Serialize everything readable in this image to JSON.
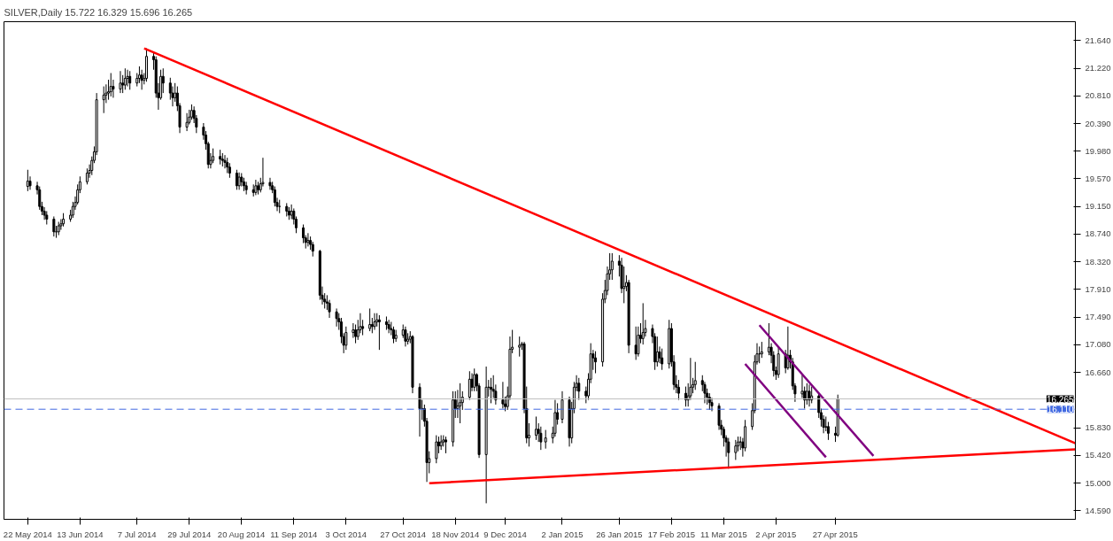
{
  "chart_data": {
    "type": "candlestick",
    "title": "SILVER,Daily  15.722 16.329 15.696 16.265",
    "x": [
      "2014-05-22",
      "2014-05-23",
      "2014-05-26",
      "2014-05-27",
      "2014-05-28",
      "2014-05-29",
      "2014-05-30",
      "2014-06-02",
      "2014-06-03",
      "2014-06-04",
      "2014-06-05",
      "2014-06-06",
      "2014-06-09",
      "2014-06-10",
      "2014-06-11",
      "2014-06-12",
      "2014-06-13",
      "2014-06-16",
      "2014-06-17",
      "2014-06-18",
      "2014-06-19",
      "2014-06-20",
      "2014-06-23",
      "2014-06-24",
      "2014-06-25",
      "2014-06-26",
      "2014-06-27",
      "2014-06-30",
      "2014-07-01",
      "2014-07-02",
      "2014-07-03",
      "2014-07-04",
      "2014-07-07",
      "2014-07-08",
      "2014-07-09",
      "2014-07-10",
      "2014-07-11",
      "2014-07-14",
      "2014-07-15",
      "2014-07-16",
      "2014-07-17",
      "2014-07-18",
      "2014-07-21",
      "2014-07-22",
      "2014-07-23",
      "2014-07-24",
      "2014-07-25",
      "2014-07-28",
      "2014-07-29",
      "2014-07-30",
      "2014-07-31",
      "2014-08-01",
      "2014-08-04",
      "2014-08-05",
      "2014-08-06",
      "2014-08-07",
      "2014-08-08",
      "2014-08-11",
      "2014-08-12",
      "2014-08-13",
      "2014-08-14",
      "2014-08-15",
      "2014-08-18",
      "2014-08-19",
      "2014-08-20",
      "2014-08-21",
      "2014-08-22",
      "2014-08-25",
      "2014-08-26",
      "2014-08-27",
      "2014-08-28",
      "2014-08-29",
      "2014-09-01",
      "2014-09-02",
      "2014-09-03",
      "2014-09-04",
      "2014-09-05",
      "2014-09-08",
      "2014-09-09",
      "2014-09-10",
      "2014-09-11",
      "2014-09-12",
      "2014-09-15",
      "2014-09-16",
      "2014-09-17",
      "2014-09-18",
      "2014-09-19",
      "2014-09-22",
      "2014-09-23",
      "2014-09-24",
      "2014-09-25",
      "2014-09-26",
      "2014-09-29",
      "2014-09-30",
      "2014-10-01",
      "2014-10-02",
      "2014-10-03",
      "2014-10-06",
      "2014-10-07",
      "2014-10-08",
      "2014-10-09",
      "2014-10-10",
      "2014-10-13",
      "2014-10-14",
      "2014-10-15",
      "2014-10-16",
      "2014-10-17",
      "2014-10-20",
      "2014-10-21",
      "2014-10-22",
      "2014-10-23",
      "2014-10-24",
      "2014-10-27",
      "2014-10-28",
      "2014-10-29",
      "2014-10-30",
      "2014-10-31",
      "2014-11-03",
      "2014-11-04",
      "2014-11-05",
      "2014-11-06",
      "2014-11-07",
      "2014-11-10",
      "2014-11-11",
      "2014-11-12",
      "2014-11-13",
      "2014-11-14",
      "2014-11-17",
      "2014-11-18",
      "2014-11-19",
      "2014-11-20",
      "2014-11-21",
      "2014-11-24",
      "2014-11-25",
      "2014-11-26",
      "2014-11-27",
      "2014-11-28",
      "2014-12-01",
      "2014-12-02",
      "2014-12-03",
      "2014-12-04",
      "2014-12-05",
      "2014-12-08",
      "2014-12-09",
      "2014-12-10",
      "2014-12-11",
      "2014-12-12",
      "2014-12-15",
      "2014-12-16",
      "2014-12-17",
      "2014-12-18",
      "2014-12-19",
      "2014-12-22",
      "2014-12-23",
      "2014-12-24",
      "2014-12-26",
      "2014-12-29",
      "2014-12-30",
      "2014-12-31",
      "2015-01-02",
      "2015-01-05",
      "2015-01-06",
      "2015-01-07",
      "2015-01-08",
      "2015-01-09",
      "2015-01-12",
      "2015-01-13",
      "2015-01-14",
      "2015-01-15",
      "2015-01-16",
      "2015-01-19",
      "2015-01-20",
      "2015-01-21",
      "2015-01-22",
      "2015-01-23",
      "2015-01-26",
      "2015-01-27",
      "2015-01-28",
      "2015-01-29",
      "2015-01-30",
      "2015-02-02",
      "2015-02-03",
      "2015-02-04",
      "2015-02-05",
      "2015-02-06",
      "2015-02-09",
      "2015-02-10",
      "2015-02-11",
      "2015-02-12",
      "2015-02-13",
      "2015-02-16",
      "2015-02-17",
      "2015-02-18",
      "2015-02-19",
      "2015-02-20",
      "2015-02-23",
      "2015-02-24",
      "2015-02-25",
      "2015-02-26",
      "2015-02-27",
      "2015-03-02",
      "2015-03-03",
      "2015-03-04",
      "2015-03-05",
      "2015-03-06",
      "2015-03-09",
      "2015-03-10",
      "2015-03-11",
      "2015-03-12",
      "2015-03-13",
      "2015-03-16",
      "2015-03-17",
      "2015-03-18",
      "2015-03-19",
      "2015-03-20",
      "2015-03-23",
      "2015-03-24",
      "2015-03-25",
      "2015-03-26",
      "2015-03-27",
      "2015-03-30",
      "2015-03-31",
      "2015-04-01",
      "2015-04-02",
      "2015-04-03",
      "2015-04-06",
      "2015-04-07",
      "2015-04-08",
      "2015-04-09",
      "2015-04-10",
      "2015-04-13",
      "2015-04-14",
      "2015-04-15",
      "2015-04-16",
      "2015-04-17",
      "2015-04-20",
      "2015-04-21",
      "2015-04-22",
      "2015-04-23",
      "2015-04-24",
      "2015-04-27",
      "2015-04-28"
    ],
    "ohlc": [
      [
        19.45,
        19.7,
        19.38,
        19.53
      ],
      [
        19.53,
        19.6,
        19.4,
        19.46
      ],
      [
        19.46,
        19.52,
        19.33,
        19.4
      ],
      [
        19.4,
        19.45,
        19.1,
        19.15
      ],
      [
        19.15,
        19.22,
        19.02,
        19.08
      ],
      [
        19.08,
        19.14,
        18.95,
        19.02
      ],
      [
        19.02,
        19.08,
        18.88,
        18.96
      ],
      [
        18.96,
        19.0,
        18.7,
        18.77
      ],
      [
        18.77,
        18.86,
        18.68,
        18.77
      ],
      [
        18.77,
        18.92,
        18.72,
        18.86
      ],
      [
        18.86,
        18.96,
        18.8,
        18.89
      ],
      [
        18.89,
        19.05,
        18.85,
        18.96
      ],
      [
        18.96,
        19.1,
        18.92,
        19.02
      ],
      [
        19.02,
        19.22,
        18.98,
        19.15
      ],
      [
        19.15,
        19.3,
        19.1,
        19.21
      ],
      [
        19.21,
        19.48,
        19.18,
        19.4
      ],
      [
        19.4,
        19.6,
        19.35,
        19.52
      ],
      [
        19.52,
        19.72,
        19.48,
        19.65
      ],
      [
        19.65,
        19.78,
        19.58,
        19.69
      ],
      [
        19.69,
        19.9,
        19.62,
        19.84
      ],
      [
        19.84,
        20.05,
        19.8,
        19.97
      ],
      [
        19.97,
        20.85,
        19.92,
        20.75
      ],
      [
        20.75,
        20.95,
        20.55,
        20.82
      ],
      [
        20.82,
        20.98,
        20.7,
        20.85
      ],
      [
        20.85,
        21.05,
        20.75,
        20.87
      ],
      [
        20.87,
        21.15,
        20.8,
        20.95
      ],
      [
        20.95,
        21.05,
        20.78,
        20.91
      ],
      [
        20.91,
        21.18,
        20.85,
        21.0
      ],
      [
        21.0,
        21.12,
        20.85,
        20.97
      ],
      [
        20.97,
        21.22,
        20.9,
        21.07
      ],
      [
        21.07,
        21.2,
        20.95,
        21.1
      ],
      [
        21.1,
        21.18,
        20.9,
        21.0
      ],
      [
        21.0,
        21.15,
        20.95,
        21.07
      ],
      [
        21.07,
        21.25,
        21.0,
        21.12
      ],
      [
        21.12,
        21.2,
        20.9,
        21.04
      ],
      [
        21.04,
        21.15,
        20.98,
        21.07
      ],
      [
        21.07,
        21.52,
        21.02,
        21.4
      ],
      [
        21.4,
        21.45,
        21.2,
        21.35
      ],
      [
        21.35,
        21.4,
        20.78,
        20.85
      ],
      [
        20.85,
        21.0,
        20.6,
        20.78
      ],
      [
        20.78,
        21.2,
        20.75,
        21.1
      ],
      [
        21.1,
        21.22,
        20.85,
        21.0
      ],
      [
        21.0,
        21.08,
        20.75,
        20.85
      ],
      [
        20.85,
        20.95,
        20.65,
        20.78
      ],
      [
        20.78,
        21.0,
        20.72,
        20.85
      ],
      [
        20.85,
        20.95,
        20.58,
        20.66
      ],
      [
        20.66,
        20.7,
        20.25,
        20.34
      ],
      [
        20.34,
        20.55,
        20.28,
        20.41
      ],
      [
        20.41,
        20.6,
        20.38,
        20.49
      ],
      [
        20.49,
        20.68,
        20.45,
        20.59
      ],
      [
        20.59,
        20.65,
        20.4,
        20.47
      ],
      [
        20.47,
        20.52,
        20.25,
        20.34
      ],
      [
        20.34,
        20.4,
        20.15,
        20.22
      ],
      [
        20.22,
        20.28,
        20.0,
        20.09
      ],
      [
        20.09,
        20.12,
        19.72,
        19.78
      ],
      [
        19.78,
        19.95,
        19.72,
        19.84
      ],
      [
        19.84,
        20.02,
        19.8,
        19.9
      ],
      [
        19.9,
        20.0,
        19.78,
        19.86
      ],
      [
        19.86,
        19.95,
        19.75,
        19.84
      ],
      [
        19.84,
        19.92,
        19.72,
        19.81
      ],
      [
        19.81,
        19.88,
        19.65,
        19.74
      ],
      [
        19.74,
        19.8,
        19.58,
        19.65
      ],
      [
        19.65,
        19.7,
        19.4,
        19.46
      ],
      [
        19.46,
        19.66,
        19.4,
        19.59
      ],
      [
        19.59,
        19.65,
        19.45,
        19.52
      ],
      [
        19.52,
        19.58,
        19.38,
        19.46
      ],
      [
        19.46,
        19.52,
        19.33,
        19.4
      ],
      [
        19.4,
        19.48,
        19.3,
        19.36
      ],
      [
        19.36,
        19.55,
        19.32,
        19.46
      ],
      [
        19.46,
        19.52,
        19.33,
        19.4
      ],
      [
        19.4,
        19.58,
        19.36,
        19.49
      ],
      [
        19.49,
        19.88,
        19.45,
        19.51
      ],
      [
        19.51,
        19.58,
        19.4,
        19.46
      ],
      [
        19.46,
        19.52,
        19.35,
        19.4
      ],
      [
        19.4,
        19.45,
        19.15,
        19.21
      ],
      [
        19.21,
        19.28,
        19.08,
        19.15
      ],
      [
        19.15,
        19.25,
        19.05,
        19.15
      ],
      [
        19.15,
        19.2,
        19.0,
        19.08
      ],
      [
        19.08,
        19.14,
        18.95,
        19.02
      ],
      [
        19.02,
        19.18,
        18.96,
        19.08
      ],
      [
        19.08,
        19.12,
        18.88,
        18.96
      ],
      [
        18.96,
        19.0,
        18.75,
        18.83
      ],
      [
        18.83,
        18.88,
        18.6,
        18.68
      ],
      [
        18.68,
        18.72,
        18.52,
        18.61
      ],
      [
        18.61,
        18.75,
        18.55,
        18.64
      ],
      [
        18.64,
        18.7,
        18.5,
        18.58
      ],
      [
        18.58,
        18.62,
        18.4,
        18.48
      ],
      [
        18.48,
        18.5,
        17.75,
        17.82
      ],
      [
        17.82,
        17.95,
        17.68,
        17.76
      ],
      [
        17.76,
        17.85,
        17.62,
        17.72
      ],
      [
        17.72,
        17.82,
        17.6,
        17.7
      ],
      [
        17.7,
        17.75,
        17.48,
        17.57
      ],
      [
        17.57,
        17.62,
        17.35,
        17.47
      ],
      [
        17.47,
        17.55,
        17.3,
        17.42
      ],
      [
        17.42,
        17.48,
        17.1,
        17.2
      ],
      [
        17.2,
        17.25,
        16.95,
        17.07
      ],
      [
        17.07,
        17.35,
        17.0,
        17.26
      ],
      [
        17.26,
        17.4,
        17.18,
        17.3
      ],
      [
        17.3,
        17.38,
        17.1,
        17.2
      ],
      [
        17.2,
        17.45,
        17.15,
        17.3
      ],
      [
        17.3,
        17.55,
        17.25,
        17.35
      ],
      [
        17.35,
        17.45,
        17.22,
        17.32
      ],
      [
        17.32,
        17.62,
        17.28,
        17.38
      ],
      [
        17.38,
        17.48,
        17.25,
        17.35
      ],
      [
        17.35,
        17.55,
        17.3,
        17.42
      ],
      [
        17.42,
        17.55,
        17.35,
        17.45
      ],
      [
        17.45,
        17.52,
        17.0,
        17.42
      ],
      [
        17.42,
        17.5,
        17.3,
        17.38
      ],
      [
        17.38,
        17.45,
        17.25,
        17.32
      ],
      [
        17.32,
        17.42,
        17.22,
        17.3
      ],
      [
        17.3,
        17.35,
        17.1,
        17.17
      ],
      [
        17.17,
        17.3,
        17.12,
        17.22
      ],
      [
        17.22,
        17.38,
        17.18,
        17.3
      ],
      [
        17.3,
        17.35,
        17.05,
        17.13
      ],
      [
        17.13,
        17.25,
        17.08,
        17.16
      ],
      [
        17.16,
        17.28,
        17.1,
        17.2
      ],
      [
        17.2,
        17.22,
        16.35,
        16.44
      ],
      [
        16.44,
        16.5,
        15.7,
        16.12
      ],
      [
        16.12,
        16.25,
        15.95,
        16.12
      ],
      [
        16.12,
        16.18,
        15.85,
        15.93
      ],
      [
        15.93,
        15.98,
        15.02,
        15.31
      ],
      [
        15.31,
        15.48,
        15.15,
        15.37
      ],
      [
        15.37,
        15.72,
        15.3,
        15.62
      ],
      [
        15.62,
        15.7,
        15.45,
        15.56
      ],
      [
        15.56,
        15.72,
        15.5,
        15.62
      ],
      [
        15.62,
        15.72,
        15.55,
        15.65
      ],
      [
        15.65,
        15.7,
        15.45,
        15.62
      ],
      [
        15.62,
        16.38,
        15.55,
        16.25
      ],
      [
        16.25,
        16.38,
        15.98,
        16.12
      ],
      [
        16.12,
        16.4,
        15.98,
        16.16
      ],
      [
        16.16,
        16.5,
        15.9,
        16.21
      ],
      [
        16.21,
        16.38,
        16.1,
        16.29
      ],
      [
        16.29,
        16.68,
        16.25,
        16.56
      ],
      [
        16.56,
        16.65,
        16.38,
        16.44
      ],
      [
        16.44,
        16.72,
        16.38,
        16.63
      ],
      [
        16.63,
        16.65,
        16.38,
        16.46
      ],
      [
        16.46,
        16.5,
        15.38,
        15.43
      ],
      [
        15.43,
        16.75,
        14.7,
        16.44
      ],
      [
        16.44,
        16.55,
        16.3,
        16.44
      ],
      [
        16.44,
        16.58,
        16.2,
        16.41
      ],
      [
        16.41,
        16.62,
        16.28,
        16.38
      ],
      [
        16.38,
        16.48,
        16.18,
        16.25
      ],
      [
        16.25,
        16.52,
        16.12,
        16.19
      ],
      [
        16.19,
        16.3,
        16.08,
        16.15
      ],
      [
        16.15,
        16.45,
        16.1,
        16.31
      ],
      [
        16.31,
        17.2,
        16.25,
        17.01
      ],
      [
        17.01,
        17.3,
        16.95,
        17.04
      ],
      [
        17.04,
        17.2,
        16.9,
        17.07
      ],
      [
        17.07,
        17.12,
        17.0,
        17.09
      ],
      [
        17.09,
        17.12,
        16.05,
        16.12
      ],
      [
        16.12,
        16.45,
        15.6,
        15.68
      ],
      [
        15.68,
        15.9,
        15.55,
        15.72
      ],
      [
        15.72,
        16.0,
        15.65,
        15.81
      ],
      [
        15.81,
        15.9,
        15.62,
        15.75
      ],
      [
        15.75,
        15.85,
        15.5,
        15.62
      ],
      [
        15.62,
        15.8,
        15.52,
        15.68
      ],
      [
        15.68,
        15.85,
        15.6,
        15.75
      ],
      [
        15.75,
        16.25,
        15.7,
        16.06
      ],
      [
        16.06,
        16.2,
        15.88,
        15.96
      ],
      [
        15.96,
        16.38,
        15.9,
        16.25
      ],
      [
        16.25,
        16.3,
        15.55,
        15.68
      ],
      [
        15.68,
        16.22,
        15.6,
        16.12
      ],
      [
        16.12,
        16.52,
        16.05,
        16.44
      ],
      [
        16.44,
        16.62,
        16.38,
        16.5
      ],
      [
        16.5,
        16.58,
        16.25,
        16.38
      ],
      [
        16.38,
        16.45,
        16.2,
        16.31
      ],
      [
        16.31,
        16.65,
        16.25,
        16.56
      ],
      [
        16.56,
        17.1,
        16.5,
        16.94
      ],
      [
        16.94,
        17.0,
        16.7,
        16.88
      ],
      [
        16.88,
        16.98,
        16.65,
        16.82
      ],
      [
        16.82,
        17.85,
        16.75,
        17.76
      ],
      [
        17.76,
        18.05,
        17.7,
        17.89
      ],
      [
        17.89,
        18.25,
        17.82,
        18.14
      ],
      [
        18.14,
        18.45,
        18.05,
        18.2
      ],
      [
        18.2,
        18.45,
        18.05,
        18.33
      ],
      [
        18.33,
        18.42,
        18.1,
        18.27
      ],
      [
        18.27,
        18.38,
        17.85,
        17.92
      ],
      [
        17.92,
        18.25,
        17.7,
        17.95
      ],
      [
        17.95,
        18.12,
        17.88,
        18.01
      ],
      [
        18.01,
        18.05,
        16.95,
        17.07
      ],
      [
        17.07,
        17.35,
        16.85,
        16.94
      ],
      [
        16.94,
        17.35,
        16.9,
        17.22
      ],
      [
        17.22,
        17.4,
        17.1,
        17.17
      ],
      [
        17.17,
        17.7,
        17.08,
        17.26
      ],
      [
        17.26,
        17.45,
        17.2,
        17.32
      ],
      [
        17.32,
        17.38,
        17.1,
        17.2
      ],
      [
        17.2,
        17.25,
        16.7,
        16.82
      ],
      [
        16.82,
        17.2,
        16.75,
        16.97
      ],
      [
        16.97,
        17.05,
        16.8,
        16.88
      ],
      [
        16.88,
        17.02,
        16.7,
        16.79
      ],
      [
        16.79,
        17.45,
        16.72,
        17.32
      ],
      [
        17.32,
        17.4,
        16.75,
        16.82
      ],
      [
        16.82,
        16.92,
        16.4,
        16.48
      ],
      [
        16.48,
        16.62,
        16.35,
        16.44
      ],
      [
        16.44,
        16.55,
        16.25,
        16.35
      ],
      [
        16.35,
        16.45,
        16.15,
        16.25
      ],
      [
        16.25,
        16.5,
        16.15,
        16.31
      ],
      [
        16.31,
        16.88,
        16.25,
        16.44
      ],
      [
        16.44,
        16.58,
        16.35,
        16.48
      ],
      [
        16.48,
        16.82,
        16.4,
        16.54
      ],
      [
        16.54,
        16.62,
        16.38,
        16.48
      ],
      [
        16.48,
        16.52,
        16.2,
        16.35
      ],
      [
        16.35,
        16.42,
        16.18,
        16.29
      ],
      [
        16.29,
        16.35,
        16.1,
        16.21
      ],
      [
        16.21,
        16.28,
        16.08,
        16.16
      ],
      [
        16.16,
        16.2,
        15.8,
        15.87
      ],
      [
        15.87,
        15.95,
        15.72,
        15.81
      ],
      [
        15.81,
        15.85,
        15.55,
        15.68
      ],
      [
        15.68,
        15.72,
        15.4,
        15.62
      ],
      [
        15.62,
        15.68,
        15.22,
        15.46
      ],
      [
        15.46,
        15.65,
        15.35,
        15.56
      ],
      [
        15.56,
        15.7,
        15.48,
        15.62
      ],
      [
        15.62,
        15.7,
        15.5,
        15.62
      ],
      [
        15.62,
        15.68,
        15.4,
        15.53
      ],
      [
        15.53,
        15.95,
        15.48,
        15.85
      ],
      [
        15.85,
        16.2,
        15.8,
        16.09
      ],
      [
        16.09,
        16.92,
        16.05,
        16.82
      ],
      [
        16.82,
        17.1,
        16.78,
        16.94
      ],
      [
        16.94,
        17.05,
        16.8,
        16.94
      ],
      [
        16.94,
        17.12,
        16.88,
        16.97
      ],
      [
        16.97,
        17.4,
        16.92,
        17.04
      ],
      [
        17.04,
        17.1,
        16.8,
        16.92
      ],
      [
        16.92,
        16.98,
        16.6,
        16.69
      ],
      [
        16.69,
        16.75,
        16.55,
        16.63
      ],
      [
        16.63,
        17.05,
        16.58,
        16.94
      ],
      [
        16.94,
        17.0,
        16.65,
        16.73
      ],
      [
        16.73,
        17.35,
        16.7,
        16.92
      ],
      [
        16.92,
        17.0,
        16.72,
        16.82
      ],
      [
        16.82,
        16.88,
        16.4,
        16.46
      ],
      [
        16.46,
        16.5,
        16.22,
        16.34
      ],
      [
        16.34,
        16.62,
        16.28,
        16.38
      ],
      [
        16.38,
        16.45,
        16.12,
        16.25
      ],
      [
        16.25,
        16.5,
        16.18,
        16.38
      ],
      [
        16.38,
        16.48,
        16.15,
        16.25
      ],
      [
        16.25,
        16.45,
        16.2,
        16.31
      ],
      [
        16.31,
        16.35,
        15.98,
        16.06
      ],
      [
        16.06,
        16.12,
        15.85,
        15.96
      ],
      [
        15.96,
        16.02,
        15.75,
        15.84
      ],
      [
        15.84,
        16.0,
        15.78,
        15.85
      ],
      [
        15.85,
        15.92,
        15.65,
        15.75
      ],
      [
        15.75,
        15.85,
        15.62,
        15.72
      ],
      [
        15.722,
        16.329,
        15.696,
        16.265
      ]
    ],
    "series": [
      {
        "type": "line",
        "color": "#ff0000",
        "x": [
          "2014-07-10",
          "2015-08-06"
        ],
        "values": [
          21.52,
          15.6
        ]
      },
      {
        "type": "line",
        "color": "#ff0000",
        "x": [
          "2014-11-07",
          "2015-08-06"
        ],
        "values": [
          15.0,
          15.51
        ]
      },
      {
        "type": "line",
        "color": "#800080",
        "x": [
          "2015-03-26",
          "2015-05-13"
        ],
        "values": [
          17.37,
          15.41
        ]
      },
      {
        "type": "line",
        "color": "#800080",
        "x": [
          "2015-03-20",
          "2015-04-23"
        ],
        "values": [
          16.79,
          15.39
        ]
      }
    ],
    "ref_lines": [
      {
        "axis": "y",
        "value": 16.265,
        "label": "16.265",
        "color": "#c0c0c0",
        "line_style": "solid"
      },
      {
        "axis": "y",
        "value": 16.11,
        "label": "16.110",
        "color": "#4169e1",
        "line_style": "dashed"
      }
    ],
    "xlim": [
      "2014-05-12",
      "2015-08-06"
    ],
    "ylim": [
      14.46,
      21.92
    ],
    "xticks": [
      {
        "value": "2014-05-22",
        "label": "22 May 2014"
      },
      {
        "value": "2014-06-13",
        "label": "13 Jun 2014"
      },
      {
        "value": "2014-07-07",
        "label": "7 Jul 2014"
      },
      {
        "value": "2014-07-29",
        "label": "29 Jul 2014"
      },
      {
        "value": "2014-08-20",
        "label": "20 Aug 2014"
      },
      {
        "value": "2014-09-11",
        "label": "11 Sep 2014"
      },
      {
        "value": "2014-10-03",
        "label": "3 Oct 2014"
      },
      {
        "value": "2014-10-27",
        "label": "27 Oct 2014"
      },
      {
        "value": "2014-11-18",
        "label": "18 Nov 2014"
      },
      {
        "value": "2014-12-09",
        "label": "9 Dec 2014"
      },
      {
        "value": "2015-01-02",
        "label": "2 Jan 2015"
      },
      {
        "value": "2015-01-26",
        "label": "26 Jan 2015"
      },
      {
        "value": "2015-02-17",
        "label": "17 Feb 2015"
      },
      {
        "value": "2015-03-11",
        "label": "11 Mar 2015"
      },
      {
        "value": "2015-04-02",
        "label": "2 Apr 2015"
      },
      {
        "value": "2015-04-27",
        "label": "27 Apr 2015"
      }
    ],
    "yticks": [
      {
        "value": 14.59,
        "label": "14.590"
      },
      {
        "value": 15.0,
        "label": "15.000"
      },
      {
        "value": 15.42,
        "label": "15.420"
      },
      {
        "value": 15.83,
        "label": "15.830"
      },
      {
        "value": 16.66,
        "label": "16.660"
      },
      {
        "value": 17.08,
        "label": "17.080"
      },
      {
        "value": 17.49,
        "label": "17.490"
      },
      {
        "value": 17.91,
        "label": "17.910"
      },
      {
        "value": 18.32,
        "label": "18.320"
      },
      {
        "value": 18.74,
        "label": "18.740"
      },
      {
        "value": 19.15,
        "label": "19.150"
      },
      {
        "value": 19.57,
        "label": "19.570"
      },
      {
        "value": 19.98,
        "label": "19.980"
      },
      {
        "value": 20.39,
        "label": "20.390"
      },
      {
        "value": 20.81,
        "label": "20.810"
      },
      {
        "value": 21.22,
        "label": "21.220"
      },
      {
        "value": 21.64,
        "label": "21.640"
      }
    ],
    "grid": false
  }
}
